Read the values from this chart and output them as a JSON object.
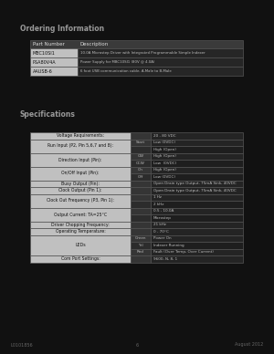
{
  "bg_color": "#111111",
  "title1": "Ordering Information",
  "title2": "Specifications",
  "order_table": {
    "headers": [
      "Part Number",
      "Description"
    ],
    "rows": [
      [
        "MBC10SI1",
        "10.0A Microstep Driver with Integrated Programmable Simple Indexer"
      ],
      [
        "PSA80V4A",
        "Power Supply for MBC10SI1 (80V @ 4.0A)"
      ],
      [
        "AAUSB-6",
        "6 foot USB communication cable, A-Male to B-Male"
      ]
    ]
  },
  "spec_table": {
    "rows": [
      {
        "label": "Voltage Requirements:",
        "sub": [
          [
            "",
            "20 - 80 VDC"
          ]
        ]
      },
      {
        "label": "Run Input (P2, Pin 5,6,7 and 8):",
        "sub": [
          [
            "Start",
            "Low (0VDC)"
          ],
          [
            "",
            "High (Open)"
          ]
        ]
      },
      {
        "label": "Direction Input (Pin):",
        "sub": [
          [
            "CW",
            "High (Open)"
          ],
          [
            "CCW",
            "Low  (0VDC)"
          ]
        ]
      },
      {
        "label": "On/Off Input (Pin):",
        "sub": [
          [
            "On",
            "High (Open)"
          ],
          [
            "Off",
            "Low (0VDC)"
          ]
        ]
      },
      {
        "label": "Busy Output (Pin):",
        "sub": [
          [
            "",
            "Open Drain type Output, 75mA Sink, 40VDC"
          ]
        ]
      },
      {
        "label": "Clock Output (Pin 1):",
        "sub": [
          [
            "",
            "Open Drain type Output, 75mA Sink, 40VDC"
          ]
        ]
      },
      {
        "label": "Clock Out Frequency (P3, Pin 1):",
        "sub": [
          [
            "",
            "1 Hz"
          ],
          [
            "",
            "2 kHz"
          ]
        ]
      },
      {
        "label": "Output Current: TA=25°C",
        "sub": [
          [
            "",
            "0.5 - 10.0A"
          ],
          [
            "",
            "Microstep"
          ]
        ]
      },
      {
        "label": "Driver Chopping Frequency:",
        "sub": [
          [
            "",
            "21 kHz"
          ]
        ]
      },
      {
        "label": "Operating Temperature:",
        "sub": [
          [
            "",
            "0 - 70°C"
          ]
        ]
      },
      {
        "label": "LEDs",
        "sub": [
          [
            "Green",
            "Power On"
          ],
          [
            "Yel",
            "Indexer Running"
          ],
          [
            "Red",
            "Fault (Over Temp, Over Current)"
          ]
        ]
      },
      {
        "label": "Com Port Settings:",
        "sub": [
          [
            "",
            "9600, N, 8, 1"
          ]
        ]
      }
    ]
  },
  "footer_left": "L0101856",
  "footer_center": "6",
  "footer_right": "August 2012",
  "hdr_bg": "#3a3a3a",
  "lbl_bg": "#c0c0c0",
  "val_key_bg": "#333333",
  "val_bg": "#262626",
  "border_color": "#555555",
  "dark_txt": "#111111",
  "light_txt": "#aaaaaa",
  "val_txt": "#bbbbbb",
  "title_color": "#999999"
}
